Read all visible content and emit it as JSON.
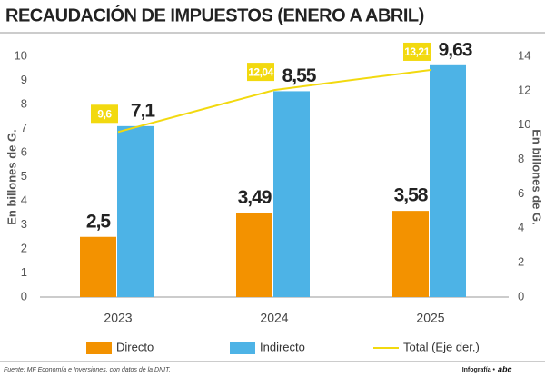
{
  "chart_data": {
    "type": "bar",
    "title": "RECAUDACIÓN DE IMPUESTOS (ENERO A ABRIL)",
    "categories": [
      "2023",
      "2024",
      "2025"
    ],
    "series": [
      {
        "name": "Directo",
        "color": "#f39200",
        "values": [
          2.5,
          3.49,
          3.58
        ],
        "value_labels": [
          "2,5",
          "3,49",
          "3,58"
        ]
      },
      {
        "name": "Indirecto",
        "color": "#4db3e6",
        "values": [
          7.1,
          8.55,
          9.63
        ],
        "value_labels": [
          "7,1",
          "8,55",
          "9,63"
        ]
      },
      {
        "name": "Total (Eje der.)",
        "color": "#f2d90f",
        "type": "line",
        "axis": "y2",
        "values": [
          9.6,
          12.04,
          13.21
        ],
        "value_labels": [
          "9,6",
          "12,04",
          "13,21"
        ]
      }
    ],
    "ylabel": "En billones de G.",
    "y2label": "En billones de G.",
    "ylim": [
      0,
      10
    ],
    "yticks": [
      0,
      1,
      2,
      3,
      4,
      5,
      6,
      7,
      8,
      9,
      10
    ],
    "y2lim": [
      0,
      14
    ],
    "y2ticks": [
      0,
      2,
      4,
      6,
      8,
      10,
      12,
      14
    ],
    "grid": false,
    "legend": "bottom"
  },
  "footer": {
    "source": "Fuente: MF Economía e Inversiones, con datos de la DNIT.",
    "credit": "Infografía •",
    "logo": "abc"
  }
}
